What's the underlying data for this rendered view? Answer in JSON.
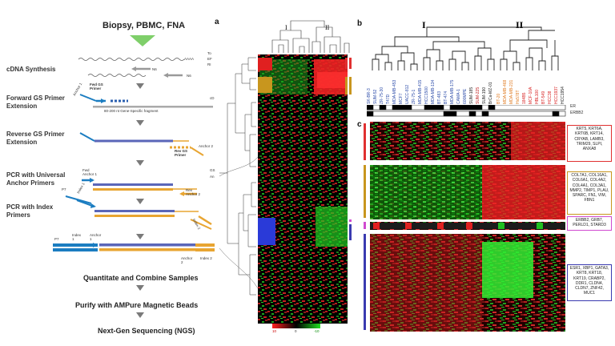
{
  "workflow": {
    "title": "Biopsy, PBMC, FNA",
    "steps": [
      {
        "label": "cDNA Synthesis"
      },
      {
        "label": "Forward GS Primer Extension"
      },
      {
        "label": "Reverse GS Primer Extension"
      },
      {
        "label": "PCR with Universal Anchor Primers"
      },
      {
        "label": "PCR with Index Primers"
      }
    ],
    "annotations": {
      "aaaa": "AAAA",
      "n6_a": "N6",
      "n6_b": "N6",
      "fwd_gs_primer": "Fwd GS Primer",
      "anchor1": "Anchor 1",
      "fragment": "80-200 nt Gene-Specific fragment",
      "rev_gs_primer": "Rev GS Primer",
      "anchor2": "Anchor 2",
      "fwd_anchor1": "Fwd Anchor 1",
      "rev_anchor2": "Rev Anchor 2",
      "p7": "P7",
      "index1": "Index 1",
      "index2": "Index 2",
      "p7_b": "P7",
      "index1_b": "Index 1",
      "anchor1_b": "Anchor 1",
      "anchor2_b": "Anchor 2",
      "index2_b": "Index 2",
      "cut_to": "To",
      "cut_ef": "EF",
      "cut_ri": "RI",
      "cut_cd": "cD",
      "cut_gs": "GS",
      "cut_ar": "An"
    },
    "final_steps": [
      "Quantitate and Combine Samples",
      "Purify with AMPure Magnetic Beads",
      "Next-Gen Sequencing (NGS)"
    ]
  },
  "panel_a": {
    "letter": "a",
    "cluster_i": "I",
    "cluster_ii": "II",
    "scale_labels": [
      "10",
      "0",
      "-10"
    ]
  },
  "panel_b": {
    "letter": "b",
    "cluster_i": "I",
    "cluster_ii": "II",
    "cell_lines_blue": [
      "SK-BR-3",
      "SUM-52",
      "ZR-75-30",
      "T47D",
      "MDA-MB-453",
      "MCF7",
      "UACC-812",
      "ZR-75-1",
      "MDA-MB-415",
      "HCC1500",
      "MDA-MB-134",
      "BT-483",
      "BT-474",
      "MDA-MB-175",
      "CAMA-1",
      "600MPE",
      "SUM-185",
      "SUM-225",
      "SUM-190",
      "BrCa-MZ-01"
    ],
    "cell_lines_red": [
      "BT-20",
      "MDA-MB-468",
      "MDA-MB-231",
      "Hs578T",
      "184B5",
      "MCF-10A",
      "HBL100",
      "BT-549",
      "HCC38",
      "HCC1937",
      "HCC1954"
    ],
    "row_labels": [
      "ER",
      "ERBB2"
    ]
  },
  "panel_c": {
    "letter": "c",
    "gene_boxes": [
      "KRT5, KRT6A, KRT6B, KRT14, CRYAB, LAMB3, TRIM29, SLPI, ANXA8",
      "COL7A1, COL16A1, COL6A1, COL4A2, COL4A1, COL3A1, MMP2, TIMP1, PLAU, SPARC, FN1, VIM, FBN1",
      "ERBB2, GRB7, PERLD1, STARD3",
      "ESR1, XBP1, GATA3, KRT8, KRT18, KRT19, CRABP2, DDR1, CLDN4, CLDN7, ZNF42, MUC1"
    ],
    "colors": {
      "red": "#e03030",
      "gold": "#c8961e",
      "magenta": "#d04ad0",
      "blue": "#3a3ab0"
    }
  }
}
